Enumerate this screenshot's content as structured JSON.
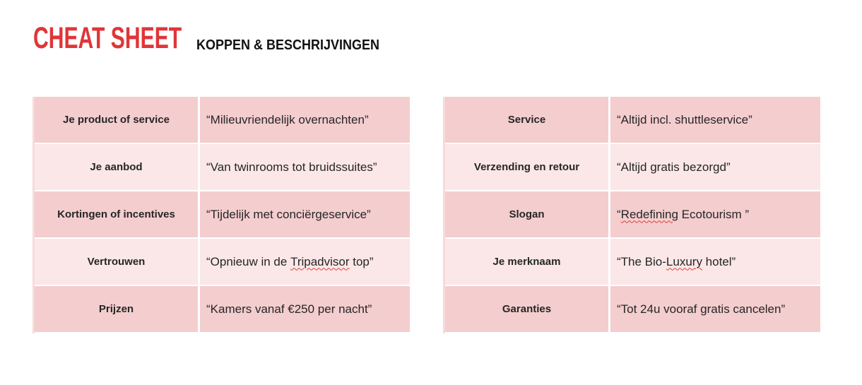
{
  "header": {
    "title": "CHEAT SHEET",
    "subtitle": "KOPPEN & BESCHRIJVINGEN"
  },
  "colors": {
    "accent": "#e03538",
    "row_dark": "#f4cdce",
    "row_light": "#fbe7e8",
    "text": "#262626",
    "squiggle": "#e0402f"
  },
  "tables": [
    {
      "name": "left",
      "rows": [
        {
          "label": "Je product of service",
          "value": [
            {
              "t": "“Milieuvriendelijk overnachten”"
            }
          ]
        },
        {
          "label": "Je aanbod",
          "value": [
            {
              "t": "“Van twinrooms tot bruidssuites”"
            }
          ]
        },
        {
          "label": "Kortingen of incentives",
          "value": [
            {
              "t": "“Tijdelijk met conciërgeservice”"
            }
          ]
        },
        {
          "label": "Vertrouwen",
          "value": [
            {
              "t": "“Opnieuw in de "
            },
            {
              "t": "Tripadvisor",
              "spell": true
            },
            {
              "t": " top”"
            }
          ]
        },
        {
          "label": "Prijzen",
          "value": [
            {
              "t": "“Kamers vanaf €250 per nacht”"
            }
          ]
        }
      ]
    },
    {
      "name": "right",
      "rows": [
        {
          "label": "Service",
          "value": [
            {
              "t": "“Altijd incl. shuttleservice”"
            }
          ]
        },
        {
          "label": "Verzending en retour",
          "value": [
            {
              "t": "“Altijd gratis bezorgd”"
            }
          ]
        },
        {
          "label": "Slogan",
          "value": [
            {
              "t": "“"
            },
            {
              "t": "Redefining",
              "spell": true
            },
            {
              "t": " Ecotourism ”"
            }
          ]
        },
        {
          "label": "Je merknaam",
          "value": [
            {
              "t": "“The Bio-"
            },
            {
              "t": "Luxury",
              "spell": true
            },
            {
              "t": " hotel”"
            }
          ]
        },
        {
          "label": "Garanties",
          "value": [
            {
              "t": "“Tot 24u vooraf gratis cancelen”"
            }
          ]
        }
      ]
    }
  ]
}
